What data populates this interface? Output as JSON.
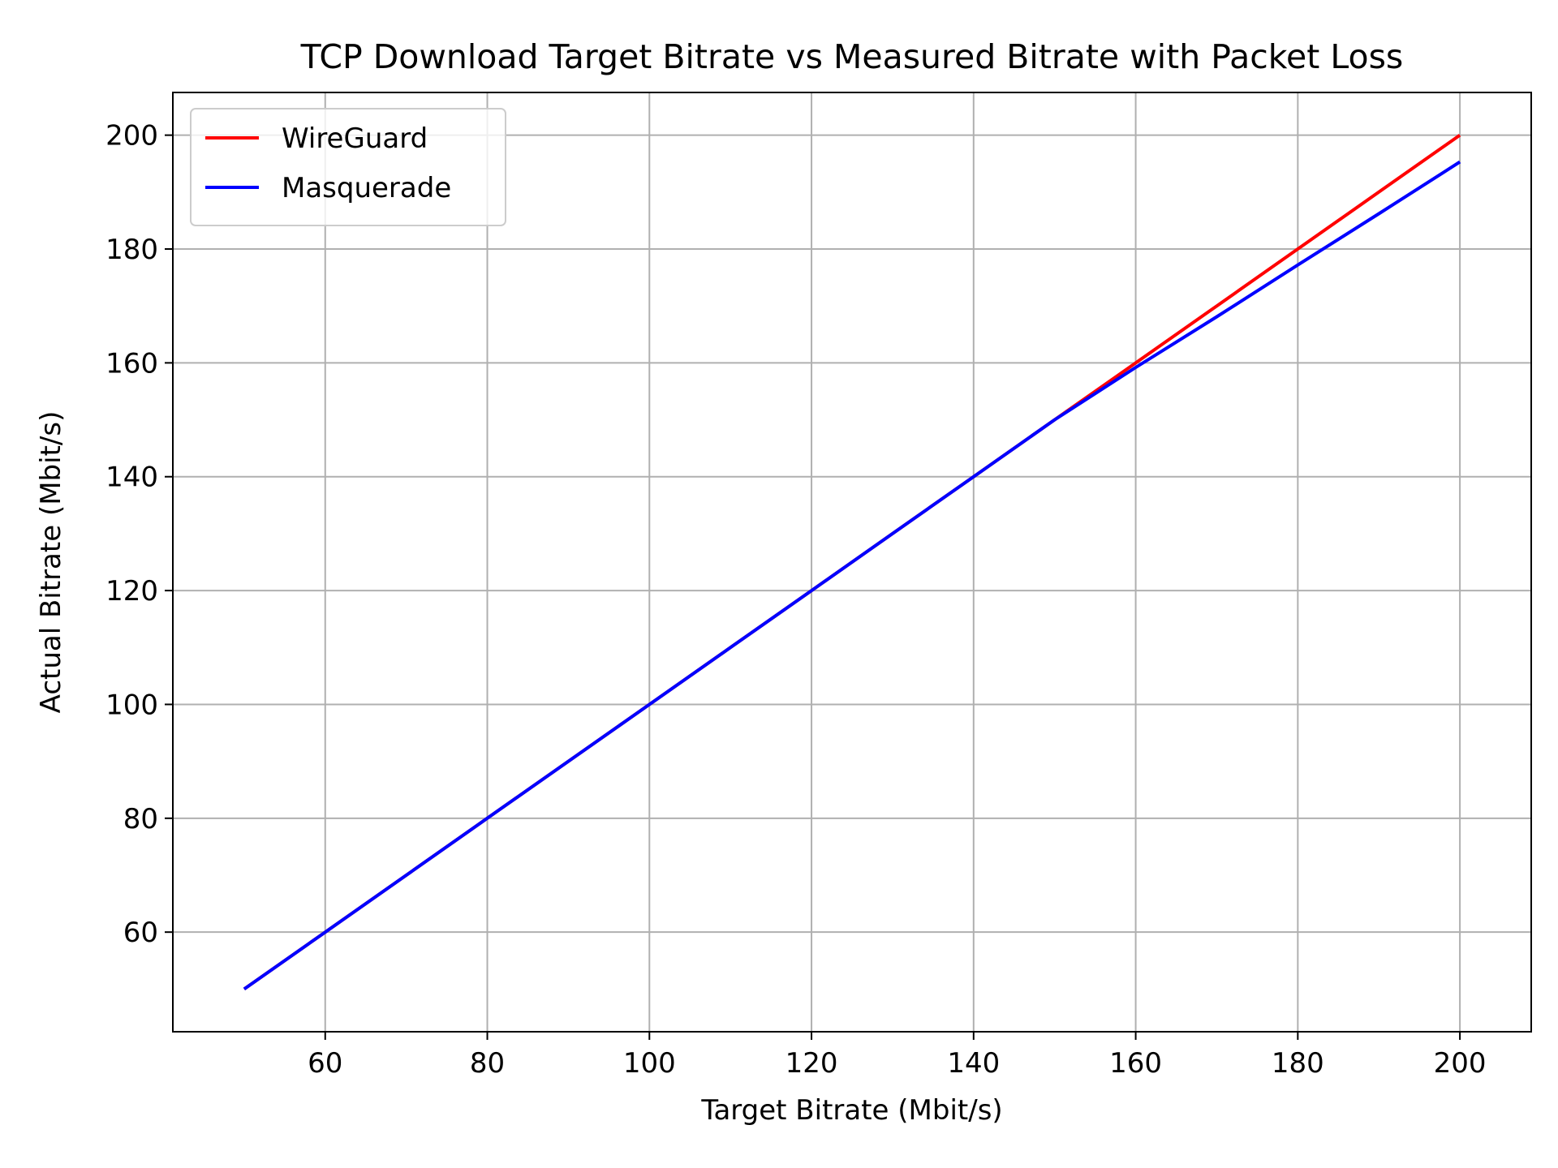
{
  "chart_data": {
    "type": "line",
    "title": "TCP Download Target Bitrate vs Measured Bitrate with Packet Loss",
    "xlabel": "Target Bitrate (Mbit/s)",
    "ylabel": "Actual Bitrate (Mbit/s)",
    "xlim": [
      41.2,
      208.8
    ],
    "ylim": [
      42.5,
      207.5
    ],
    "xticks": [
      60,
      80,
      100,
      120,
      140,
      160,
      180,
      200
    ],
    "yticks": [
      60,
      80,
      100,
      120,
      140,
      160,
      180,
      200
    ],
    "grid": true,
    "legend_position": "top-left",
    "series": [
      {
        "name": "WireGuard",
        "color": "#ff0000",
        "x": [
          50,
          60,
          70,
          80,
          90,
          100,
          110,
          120,
          130,
          140,
          150,
          160,
          170,
          180,
          190,
          200
        ],
        "y": [
          50,
          60,
          70,
          80,
          90,
          100,
          110,
          120,
          130,
          140,
          150,
          160,
          170,
          180,
          190,
          200
        ]
      },
      {
        "name": "Masquerade",
        "color": "#0000ff",
        "x": [
          50,
          60,
          70,
          80,
          90,
          100,
          110,
          120,
          130,
          140,
          150,
          160,
          170,
          180,
          190,
          200
        ],
        "y": [
          50,
          60,
          70,
          80,
          90,
          100,
          110,
          120,
          130,
          140,
          150,
          159.2,
          168.1,
          177.2,
          186.2,
          195.3
        ]
      }
    ]
  }
}
